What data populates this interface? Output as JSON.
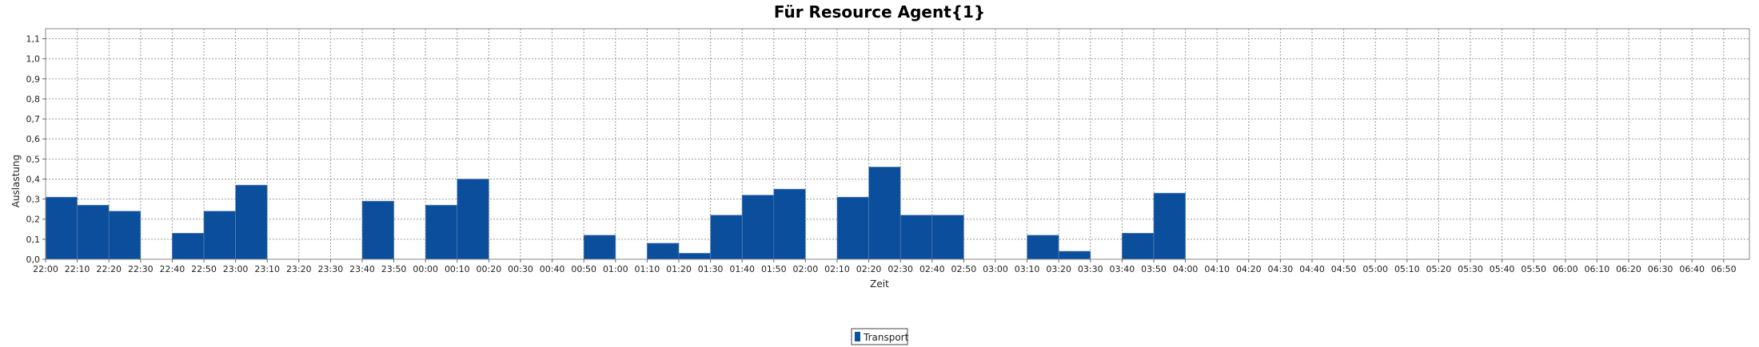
{
  "chart_data": {
    "type": "bar",
    "title": "Für Resource Agent{1}",
    "xlabel": "Zeit",
    "ylabel": "Auslastung",
    "ylim": [
      0,
      1.15
    ],
    "yticks": [
      "0,0",
      "0,1",
      "0,2",
      "0,3",
      "0,4",
      "0,5",
      "0,6",
      "0,7",
      "0,8",
      "0,9",
      "1,0",
      "1,1"
    ],
    "grid": true,
    "legend_position": "bottom-center",
    "bar_color": "#0b4f9c",
    "categories": [
      "22:00",
      "22:10",
      "22:20",
      "22:30",
      "22:40",
      "22:50",
      "23:00",
      "23:10",
      "23:20",
      "23:30",
      "23:40",
      "23:50",
      "00:00",
      "00:10",
      "00:20",
      "00:30",
      "00:40",
      "00:50",
      "01:00",
      "01:10",
      "01:20",
      "01:30",
      "01:40",
      "01:50",
      "02:00",
      "02:10",
      "02:20",
      "02:30",
      "02:40",
      "02:50",
      "03:00",
      "03:10",
      "03:20",
      "03:30",
      "03:40",
      "03:50",
      "04:00",
      "04:10",
      "04:20",
      "04:30",
      "04:40",
      "04:50",
      "05:00",
      "05:10",
      "05:20",
      "05:30",
      "05:40",
      "05:50",
      "06:00",
      "06:10",
      "06:20",
      "06:30",
      "06:40",
      "06:50"
    ],
    "series": [
      {
        "name": "Transport",
        "values": [
          0.31,
          0.27,
          0.24,
          0,
          0.13,
          0.24,
          0.37,
          0,
          0,
          0,
          0.29,
          0,
          0.27,
          0.4,
          0,
          0,
          0,
          0.12,
          0,
          0.08,
          0.03,
          0.22,
          0.32,
          0.35,
          0,
          0.31,
          0.46,
          0.22,
          0.22,
          0,
          0,
          0.12,
          0.04,
          0,
          0.13,
          0.33,
          0,
          0,
          0,
          0,
          0,
          0,
          0,
          0,
          0,
          0,
          0,
          0,
          0,
          0,
          0,
          0,
          0,
          0
        ]
      }
    ]
  }
}
